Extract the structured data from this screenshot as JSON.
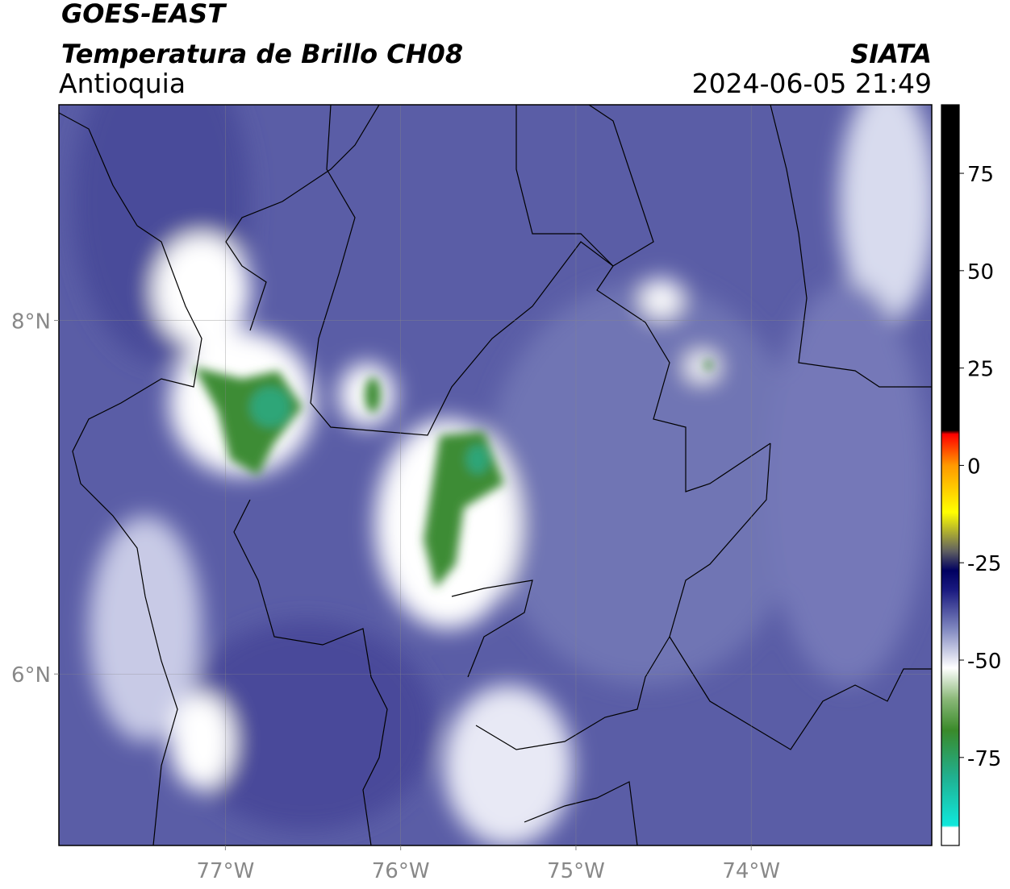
{
  "header": {
    "title": "GOES-EAST",
    "subtitle": "Temperatura de Brillo CH08",
    "region": "Antioquia",
    "source": "SIATA",
    "datetime": "2024-06-05 21:49"
  },
  "map": {
    "xlim": [
      -77.95,
      -72.97
    ],
    "ylim": [
      5.03,
      9.22
    ],
    "xticks": [
      {
        "value": -77,
        "label": "77°W"
      },
      {
        "value": -76,
        "label": "76°W"
      },
      {
        "value": -75,
        "label": "75°W"
      },
      {
        "value": -74,
        "label": "74°W"
      }
    ],
    "yticks": [
      {
        "value": 8,
        "label": "8°N"
      },
      {
        "value": 6,
        "label": "6°N"
      }
    ],
    "grid": true
  },
  "colorbar": {
    "clim": [
      -97.6,
      92.6
    ],
    "ticks": [
      75,
      50,
      25,
      0,
      -25,
      -50,
      -75
    ],
    "stops": [
      [
        -97.6,
        "#ffffff"
      ],
      [
        -93,
        "#ffffff"
      ],
      [
        -92.5,
        "#10e8dc"
      ],
      [
        -80,
        "#20b090"
      ],
      [
        -68,
        "#3a8a2a"
      ],
      [
        -60,
        "#8ab878"
      ],
      [
        -52,
        "#ffffff"
      ],
      [
        -42,
        "#8088c0"
      ],
      [
        -32,
        "#1a1a80"
      ],
      [
        -27,
        "#000060"
      ],
      [
        -22,
        "#606060"
      ],
      [
        -12,
        "#ffff00"
      ],
      [
        0,
        "#ff9900"
      ],
      [
        8,
        "#ff0000"
      ],
      [
        9,
        "#000000"
      ],
      [
        92.6,
        "#000000"
      ]
    ]
  }
}
